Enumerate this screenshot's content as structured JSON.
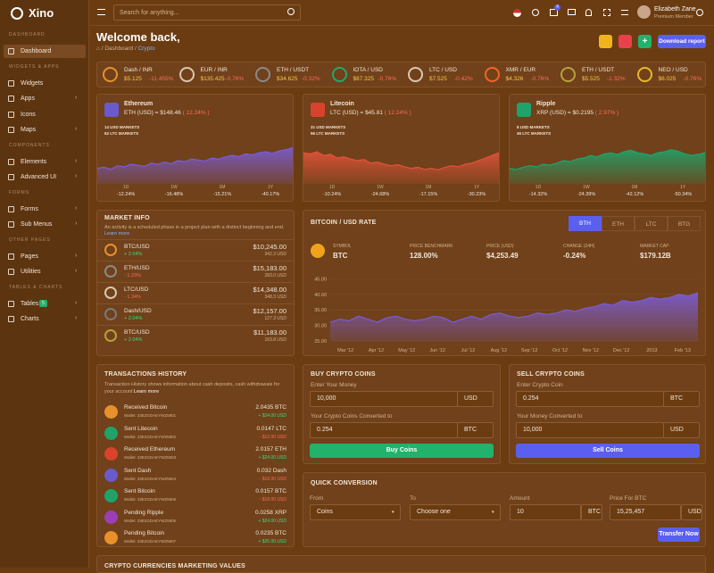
{
  "brand": "Xino",
  "sidebar": [
    {
      "section": "DASHBOARD",
      "items": [
        {
          "label": "Dashboard",
          "active": true
        }
      ]
    },
    {
      "section": "WIDGETS & APPS",
      "items": [
        {
          "label": "Widgets"
        },
        {
          "label": "Apps",
          "submenu": true
        },
        {
          "label": "Icons"
        },
        {
          "label": "Maps",
          "submenu": true
        }
      ]
    },
    {
      "section": "COMPONENTS",
      "items": [
        {
          "label": "Elements",
          "submenu": true
        },
        {
          "label": "Advanced UI",
          "submenu": true
        }
      ]
    },
    {
      "section": "FORMS",
      "items": [
        {
          "label": "Forms",
          "submenu": true
        },
        {
          "label": "Sub Menus",
          "submenu": true
        }
      ]
    },
    {
      "section": "OTHER PAGES",
      "items": [
        {
          "label": "Pages",
          "submenu": true
        },
        {
          "label": "Utilities",
          "submenu": true
        }
      ]
    },
    {
      "section": "TABLES & CHARTS",
      "items": [
        {
          "label": "Tables",
          "badge": "5",
          "submenu": true
        },
        {
          "label": "Charts",
          "submenu": true
        }
      ]
    }
  ],
  "topbar": {
    "search": "Search for anything...",
    "cart_badge": "4",
    "user": "Elizabeth Zane",
    "role": "Premium Member"
  },
  "header": {
    "title": "Welcome back,",
    "breadcrumb": [
      "Dashboard",
      "Crypto"
    ],
    "button": "Download report"
  },
  "tickers": [
    {
      "pair": "Dash / INR",
      "price": "$5.125",
      "change": "-11.455%",
      "color": "#e8912a"
    },
    {
      "pair": "EUR / INR",
      "price": "$135.425",
      "change": "-0.78%",
      "color": "#d9c7b0"
    },
    {
      "pair": "ETH / USDT",
      "price": "$34.625",
      "change": "-0.32%",
      "color": "#8a8a8a"
    },
    {
      "pair": "IOTA / USD",
      "price": "$67.325",
      "change": "-0.76%",
      "color": "#23a86b"
    },
    {
      "pair": "LTC / USD",
      "price": "$7.525",
      "change": "-0.42%",
      "color": "#d9c7b0"
    },
    {
      "pair": "XMR / EUR",
      "price": "$4.326",
      "change": "-0.76%",
      "color": "#f26522"
    },
    {
      "pair": "ETH / USDT",
      "price": "$5.525",
      "change": "-1.32%",
      "color": "#b6a23a"
    },
    {
      "pair": "NEO / USD",
      "price": "$6.025",
      "change": "-0.76%",
      "color": "#e6b82e"
    }
  ],
  "coins": [
    {
      "name": "Ethereum",
      "rate": "ETH (USD) = $148.46",
      "rate_change": "( 12.24% )",
      "icon_color": "#6a5acd",
      "markets": [
        "14 USD MARKETS",
        "62 LTC MARKETS"
      ],
      "color": "#7b5cd6",
      "ylim": [
        0,
        100
      ],
      "values": [
        30,
        32,
        28,
        35,
        33,
        38,
        36,
        34,
        40,
        38,
        42,
        39,
        45,
        43,
        48,
        46,
        44,
        50,
        48,
        52,
        55,
        53,
        58,
        56,
        60,
        62,
        59,
        64,
        66,
        70
      ],
      "stats": [
        {
          "period": "1D",
          "change": "-12.24%"
        },
        {
          "period": "1W",
          "change": "-16.48%"
        },
        {
          "period": "1M",
          "change": "-15.21%"
        },
        {
          "period": "1Y",
          "change": "-40.17%"
        }
      ]
    },
    {
      "name": "Litecoin",
      "rate": "LTC (USD) = $45.81",
      "rate_change": "( 12.24% )",
      "icon_color": "#d9432b",
      "markets": [
        "31 USD MARKETS",
        "96 LTC MARKETS"
      ],
      "color": "#e0533a",
      "ylim": [
        0,
        100
      ],
      "values": [
        60,
        58,
        62,
        55,
        57,
        50,
        52,
        48,
        45,
        47,
        40,
        42,
        38,
        35,
        37,
        33,
        30,
        32,
        28,
        30,
        27,
        32,
        35,
        33,
        38,
        40,
        45,
        50,
        55,
        60
      ],
      "stats": [
        {
          "period": "1D",
          "change": "-10.24%"
        },
        {
          "period": "1W",
          "change": "-24.68%"
        },
        {
          "period": "1M",
          "change": "-17.15%"
        },
        {
          "period": "1Y",
          "change": "-30.23%"
        }
      ]
    },
    {
      "name": "Ripple",
      "rate": "XRP (USD) = $0.2195",
      "rate_change": "( 2.97% )",
      "icon_color": "#1fa36a",
      "markets": [
        "8 USD MARKETS",
        "46 LTC MARKETS"
      ],
      "color": "#1fa36a",
      "ylim": [
        0,
        100
      ],
      "values": [
        30,
        28,
        32,
        35,
        33,
        38,
        36,
        40,
        45,
        43,
        48,
        50,
        55,
        52,
        58,
        60,
        57,
        62,
        65,
        60,
        58,
        55,
        60,
        62,
        66,
        63,
        58,
        55,
        57,
        60
      ],
      "stats": [
        {
          "period": "1D",
          "change": "-14.32%"
        },
        {
          "period": "1W",
          "change": "-24.39%"
        },
        {
          "period": "1M",
          "change": "-42.12%"
        },
        {
          "period": "1Y",
          "change": "-50.34%"
        }
      ]
    }
  ],
  "market_info": {
    "title": "MARKET INFO",
    "text": "An activity is a scheduled phase in a project plan with a distinct beginning and end.",
    "link": "Learn more",
    "rows": [
      {
        "pair": "BTC/USD",
        "price": "$10,245.00",
        "change": "+ 2.04%",
        "volume": "342.3 USD",
        "color": "#e8912a"
      },
      {
        "pair": "ETH/USD",
        "price": "$15,183.00",
        "change": "- 1.23%",
        "volume": "283.0 USD",
        "color": "#8a8a8a"
      },
      {
        "pair": "LTC/USD",
        "price": "$14,348.00",
        "change": "- 1.34%",
        "volume": "348.3 USD",
        "color": "#d9c7b0"
      },
      {
        "pair": "Dash/USD",
        "price": "$12,157.00",
        "change": "+ 2.04%",
        "volume": "127.3 USD",
        "color": "#7a7a7a"
      },
      {
        "pair": "BTC/USD",
        "price": "$11,183.00",
        "change": "+ 2.04%",
        "volume": "163.8 USD",
        "color": "#b6a23a"
      }
    ]
  },
  "bitcoin": {
    "title": "BITCOIN / USD RATE",
    "tabs": [
      "BTH",
      "ETH",
      "LTC",
      "BTG"
    ],
    "stats": [
      {
        "label": "SYMBOL",
        "value": "BTC"
      },
      {
        "label": "PRICE BENCHMARK",
        "value": "128.00%"
      },
      {
        "label": "PRICE (USD)",
        "value": "$4,253.49"
      },
      {
        "label": "CHANGE (24H)",
        "value": "-0.24%"
      },
      {
        "label": "MARKET CAP",
        "value": "$179.12B"
      }
    ],
    "chart": {
      "type": "area",
      "color": "#7b5cd6",
      "ylim": [
        25,
        48
      ],
      "yticks": [
        {
          "value": 45,
          "label": "45.00"
        },
        {
          "value": 40,
          "label": "40.00"
        },
        {
          "value": 35,
          "label": "35.00"
        },
        {
          "value": 30,
          "label": "30.00"
        },
        {
          "value": 25,
          "label": "25.00"
        }
      ],
      "x_labels": [
        "Mar '12",
        "Apr '12",
        "May '12",
        "Jun '12",
        "Jul '12",
        "Aug '12",
        "Sep '12",
        "Oct '12",
        "Nov '12",
        "Dec '12",
        "2013",
        "Feb '13"
      ],
      "values": [
        31,
        32,
        31.5,
        33,
        32,
        31,
        32.5,
        33,
        32,
        31.5,
        32,
        33,
        32.5,
        31,
        32,
        33,
        32,
        33.5,
        34,
        33,
        32.5,
        33,
        34,
        33.5,
        34,
        35,
        34.5,
        35.5,
        36,
        37,
        36.5,
        38,
        37.5,
        38,
        39,
        38.5,
        39,
        40,
        39.5,
        40.5
      ]
    }
  },
  "transactions": {
    "title": "TRANSACTIONS HISTORY",
    "text": "Transaction History shows information about cash deposits, cash withdrawals for your account",
    "link": "Learn more",
    "rows": [
      {
        "title": "Received Bitcoin",
        "wallet": "Wallet: 33E2GDAEYWZ5801",
        "amount": "2.0435 BTC",
        "usd": "+ $24.00 USD",
        "color": "#e8912a"
      },
      {
        "title": "Sent Litecoin",
        "wallet": "Wallet: 33E2GDAEYWZ5802",
        "amount": "0.0147 LTC",
        "usd": "- $12.00 USD",
        "color": "#1fa36a"
      },
      {
        "title": "Received Ethereum",
        "wallet": "Wallet: 33E2GDAEYWZ5803",
        "amount": "2.0157 ETH",
        "usd": "+ $24.00 USD",
        "color": "#d9432b"
      },
      {
        "title": "Sent Dash",
        "wallet": "Wallet: 33E2GDAEYWZ5804",
        "amount": "0.032 Dash",
        "usd": "- $16.00 USD",
        "color": "#6a5acd"
      },
      {
        "title": "Sent Bitcoin",
        "wallet": "Wallet: 33E2GDAEYWZ5805",
        "amount": "0.0157 BTC",
        "usd": "- $18.00 USD",
        "color": "#1fa36a"
      },
      {
        "title": "Pending Ripple",
        "wallet": "Wallet: 33E2GDAEYWZ5806",
        "amount": "0.0258 XRP",
        "usd": "+ $24.00 USD",
        "color": "#9b3fb5"
      },
      {
        "title": "Pending Bitcoin",
        "wallet": "Wallet: 33E2GDAEYWZ5807",
        "amount": "0.0235 BTC",
        "usd": "+ $35.00 USD",
        "color": "#e8912a"
      }
    ]
  },
  "buy": {
    "title": "BUY CRYPTO COINS",
    "label1": "Enter Your Money",
    "value1": "10,000",
    "unit1": "USD",
    "label2": "Your Crypto Coins Converted to",
    "value2": "0.254",
    "unit2": "BTC",
    "button": "Buy Coins"
  },
  "sell": {
    "title": "SELL CRYPTO COINS",
    "label1": "Enter Crypto Coin",
    "value1": "0.254",
    "unit1": "BTC",
    "label2": "Your Money Converted to",
    "value2": "10,000",
    "unit2": "USD",
    "button": "Sell Coins"
  },
  "conversion": {
    "title": "QUICK CONVERSION",
    "fields": [
      {
        "label": "From",
        "value": "Coins",
        "select": true
      },
      {
        "label": "To",
        "value": "Choose one",
        "select": true
      },
      {
        "label": "Amount",
        "value": "10",
        "unit": "BTC"
      },
      {
        "label": "Price For BTC",
        "value": "15,25,457",
        "unit": "USD"
      }
    ],
    "button": "Transfer Now"
  },
  "bottom_title": "CRYPTO CURRENCIES MARKETING VALUES"
}
